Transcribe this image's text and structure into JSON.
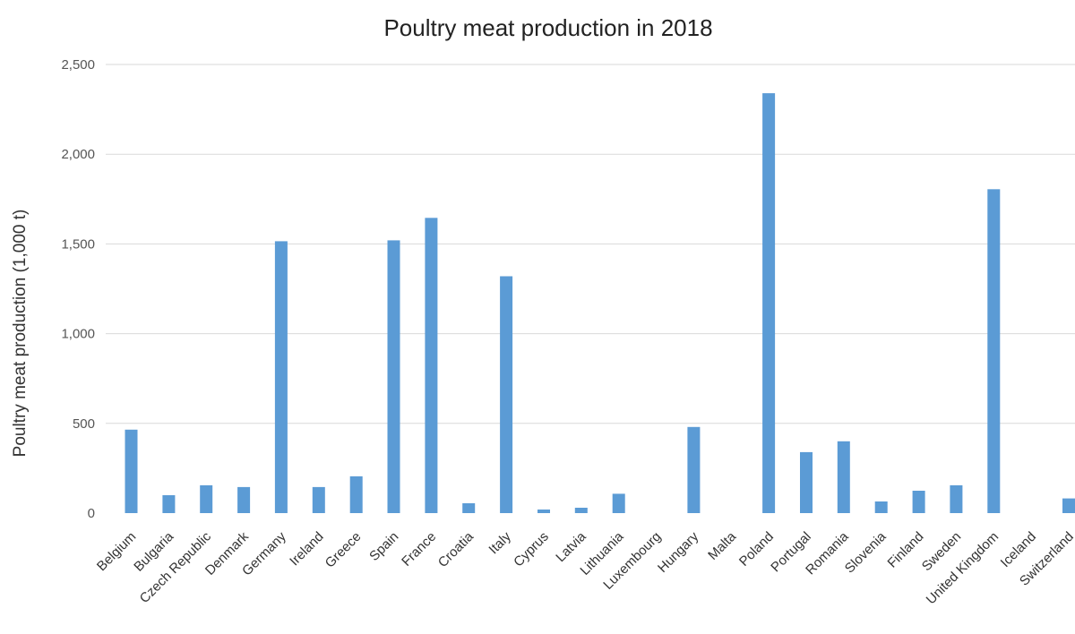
{
  "chart_data": {
    "type": "bar",
    "title": "Poultry meat production in 2018",
    "xlabel": "",
    "ylabel": "Poultry meat production (1,000 t)",
    "ylim": [
      0,
      2500
    ],
    "yticks": [
      0,
      500,
      1000,
      1500,
      2000,
      2500
    ],
    "ytick_labels": [
      "0",
      "500",
      "1,000",
      "1,500",
      "2,000",
      "2,500"
    ],
    "grid": true,
    "bar_color": "#5b9bd5",
    "categories": [
      "Belgium",
      "Bulgaria",
      "Czech Republic",
      "Denmark",
      "Germany",
      "Ireland",
      "Greece",
      "Spain",
      "France",
      "Croatia",
      "Italy",
      "Cyprus",
      "Latvia",
      "Lithuania",
      "Luxembourg",
      "Hungary",
      "Malta",
      "Poland",
      "Portugal",
      "Romania",
      "Slovenia",
      "Finland",
      "Sweden",
      "United Kingdom",
      "Iceland",
      "Switzerland"
    ],
    "values": [
      465,
      100,
      155,
      145,
      1515,
      145,
      205,
      1520,
      1645,
      55,
      1320,
      20,
      30,
      108,
      0,
      480,
      0,
      2340,
      340,
      400,
      65,
      125,
      155,
      1805,
      0,
      82
    ]
  }
}
